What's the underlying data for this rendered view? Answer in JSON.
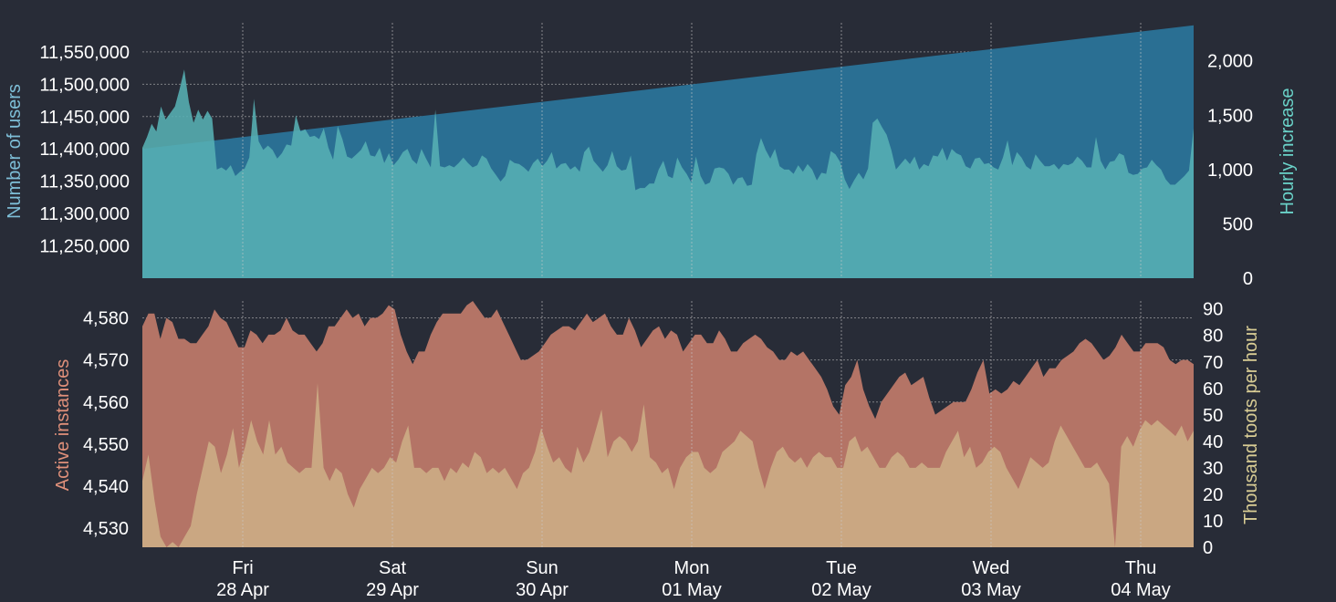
{
  "colors": {
    "background": "#282c37",
    "users_fill": "#2a6f93",
    "hourly_fill": "#57b1b4",
    "users_axis_label": "#7ebfd8",
    "hourly_axis_label": "#6ad2c8",
    "instances_fill": "#b47466",
    "instances_axis_label": "#e0907a",
    "toots_fill": "#ccab84",
    "toots_axis_label": "#d8cc94",
    "tick_text": "#ffffff",
    "grid": "#c8c8c8"
  },
  "x_axis": {
    "days": [
      {
        "weekday": "Fri",
        "date": "28 Apr"
      },
      {
        "weekday": "Sat",
        "date": "29 Apr"
      },
      {
        "weekday": "Sun",
        "date": "30 Apr"
      },
      {
        "weekday": "Mon",
        "date": "01 May"
      },
      {
        "weekday": "Tue",
        "date": "02 May"
      },
      {
        "weekday": "Wed",
        "date": "03 May"
      },
      {
        "weekday": "Thu",
        "date": "04 May"
      }
    ]
  },
  "chart_data": [
    {
      "type": "area",
      "ylabel": "Number of users",
      "y2label": "Hourly increase",
      "grid": true,
      "ylim": [
        11200000,
        11595000
      ],
      "yticks": [
        "11,250,000",
        "11,300,000",
        "11,350,000",
        "11,400,000",
        "11,450,000",
        "11,500,000",
        "11,550,000"
      ],
      "y2lim": [
        0,
        2350
      ],
      "y2ticks": [
        "0",
        "500",
        "1,000",
        "1,500",
        "2,000"
      ],
      "series": [
        {
          "axis": "left",
          "start": 11400000,
          "end": 11591000
        },
        {
          "axis": "right",
          "values": [
            1200,
            1300,
            1420,
            1350,
            1580,
            1460,
            1520,
            1580,
            1740,
            1920,
            1620,
            1430,
            1550,
            1460,
            1540,
            1470,
            1000,
            1020,
            990,
            1040,
            940,
            980,
            1010,
            1110,
            1650,
            1260,
            1180,
            1220,
            1180,
            1100,
            1150,
            1230,
            1220,
            1500,
            1350,
            1370,
            1300,
            1310,
            1280,
            1380,
            1200,
            1090,
            1400,
            1280,
            1120,
            1100,
            1140,
            1180,
            1260,
            1130,
            1120,
            1200,
            1060,
            1150,
            1040,
            1090,
            1160,
            1190,
            1090,
            1050,
            1190,
            1100,
            1020,
            1550,
            1030,
            1020,
            1040,
            1020,
            1060,
            1110,
            1060,
            1020,
            1040,
            1130,
            1100,
            1010,
            950,
            890,
            940,
            1090,
            1060,
            1050,
            1020,
            980,
            1060,
            1100,
            1030,
            1080,
            1160,
            1010,
            1050,
            1060,
            1000,
            1030,
            980,
            1160,
            1210,
            1080,
            1030,
            980,
            1040,
            1170,
            1030,
            990,
            1000,
            1130,
            810,
            830,
            830,
            870,
            870,
            1000,
            1080,
            940,
            920,
            1110,
            1020,
            960,
            880,
            1120,
            940,
            860,
            880,
            1010,
            1020,
            1010,
            960,
            860,
            920,
            930,
            850,
            860,
            1140,
            1290,
            1180,
            1100,
            1190,
            1030,
            1000,
            1000,
            960,
            1040,
            980,
            1050,
            1000,
            900,
            970,
            960,
            1170,
            1140,
            1070,
            910,
            820,
            900,
            970,
            910,
            1010,
            1430,
            1470,
            1390,
            1320,
            1180,
            1000,
            1050,
            1100,
            1050,
            1120,
            1000,
            1050,
            1030,
            1130,
            1120,
            1200,
            1080,
            1190,
            1150,
            1130,
            1030,
            1010,
            1100,
            1110,
            1050,
            1060,
            1020,
            1000,
            1110,
            1270,
            1040,
            1160,
            1110,
            1030,
            1000,
            1140,
            1080,
            1030,
            1030,
            1050,
            1000,
            1050,
            1040,
            1060,
            1120,
            1080,
            1020,
            1020,
            1300,
            1080,
            1000,
            1070,
            1080,
            1150,
            1130,
            970,
            950,
            960,
            1010,
            1020,
            1090,
            1040,
            1000,
            910,
            860,
            860,
            900,
            940,
            990,
            1380
          ]
        }
      ]
    },
    {
      "type": "area",
      "ylabel": "Active instances",
      "y2label": "Thousand toots per hour",
      "grid": true,
      "ylim": [
        4525.5,
        4584
      ],
      "yticks": [
        "4,530",
        "4,540",
        "4,550",
        "4,560",
        "4,570",
        "4,580"
      ],
      "y2lim": [
        0,
        93
      ],
      "y2ticks": [
        "0",
        "10",
        "20",
        "30",
        "40",
        "50",
        "60",
        "70",
        "80",
        "90"
      ],
      "series": [
        {
          "axis": "left",
          "values": [
            4578,
            4581,
            4581,
            4575,
            4580,
            4579,
            4575,
            4575,
            4574,
            4574,
            4576,
            4578,
            4582,
            4580,
            4579,
            4576,
            4573,
            4573,
            4577,
            4576,
            4574,
            4576,
            4576,
            4577,
            4580,
            4577,
            4576,
            4576,
            4574,
            4572,
            4574,
            4578,
            4578,
            4580,
            4582,
            4580,
            4581,
            4578,
            4580,
            4580,
            4581,
            4583,
            4582,
            4576,
            4572,
            4569,
            4572,
            4572,
            4576,
            4579,
            4581,
            4581,
            4581,
            4581,
            4583,
            4584,
            4582,
            4580,
            4580,
            4582,
            4579,
            4576,
            4573,
            4570,
            4570,
            4571,
            4572,
            4574,
            4576,
            4577,
            4578,
            4578,
            4577,
            4579,
            4581,
            4579,
            4580,
            4581,
            4578,
            4576,
            4576,
            4580,
            4577,
            4573,
            4575,
            4577,
            4578,
            4575,
            4577,
            4576,
            4572,
            4574,
            4576,
            4576,
            4574,
            4574,
            4577,
            4575,
            4572,
            4572,
            4574,
            4575,
            4576,
            4575,
            4573,
            4572,
            4570,
            4570,
            4572,
            4571,
            4572,
            4570,
            4568,
            4566,
            4563,
            4559,
            4557,
            4564,
            4566,
            4570,
            4563,
            4559,
            4556,
            4560,
            4562,
            4564,
            4566,
            4567,
            4564,
            4565,
            4566,
            4561,
            4557,
            4558,
            4559,
            4560,
            4560,
            4560,
            4563,
            4567,
            4570,
            4562,
            4563,
            4562,
            4563,
            4565,
            4564,
            4566,
            4568,
            4570,
            4566,
            4568,
            4568,
            4570,
            4571,
            4572,
            4574,
            4575,
            4574,
            4572,
            4570,
            4571,
            4573,
            4576,
            4574,
            4572,
            4572,
            4574,
            4574,
            4574,
            4573,
            4570,
            4569,
            4570,
            4570,
            4569
          ]
        },
        {
          "axis": "right",
          "values": [
            25,
            35,
            18,
            4,
            0,
            2,
            0,
            4,
            8,
            20,
            30,
            40,
            38,
            28,
            35,
            45,
            30,
            38,
            48,
            40,
            35,
            48,
            35,
            38,
            32,
            30,
            28,
            30,
            30,
            62,
            30,
            25,
            30,
            28,
            20,
            15,
            22,
            26,
            30,
            28,
            30,
            34,
            32,
            40,
            46,
            30,
            30,
            28,
            30,
            30,
            25,
            30,
            28,
            32,
            30,
            36,
            34,
            28,
            30,
            28,
            30,
            26,
            22,
            28,
            30,
            36,
            45,
            38,
            32,
            34,
            30,
            28,
            38,
            32,
            36,
            44,
            52,
            34,
            40,
            42,
            40,
            36,
            40,
            54,
            34,
            32,
            28,
            30,
            22,
            30,
            34,
            36,
            36,
            30,
            28,
            30,
            36,
            38,
            40,
            44,
            42,
            40,
            30,
            22,
            30,
            36,
            38,
            34,
            32,
            34,
            30,
            34,
            36,
            34,
            34,
            30,
            30,
            40,
            42,
            36,
            38,
            34,
            30,
            30,
            34,
            36,
            34,
            30,
            30,
            32,
            30,
            30,
            30,
            36,
            40,
            44,
            34,
            38,
            30,
            32,
            36,
            38,
            36,
            30,
            26,
            22,
            28,
            34,
            32,
            30,
            32,
            40,
            46,
            42,
            38,
            34,
            30,
            30,
            32,
            28,
            24,
            0,
            38,
            42,
            38,
            44,
            48,
            46,
            48,
            46,
            44,
            42,
            46,
            40,
            44
          ]
        }
      ]
    }
  ]
}
